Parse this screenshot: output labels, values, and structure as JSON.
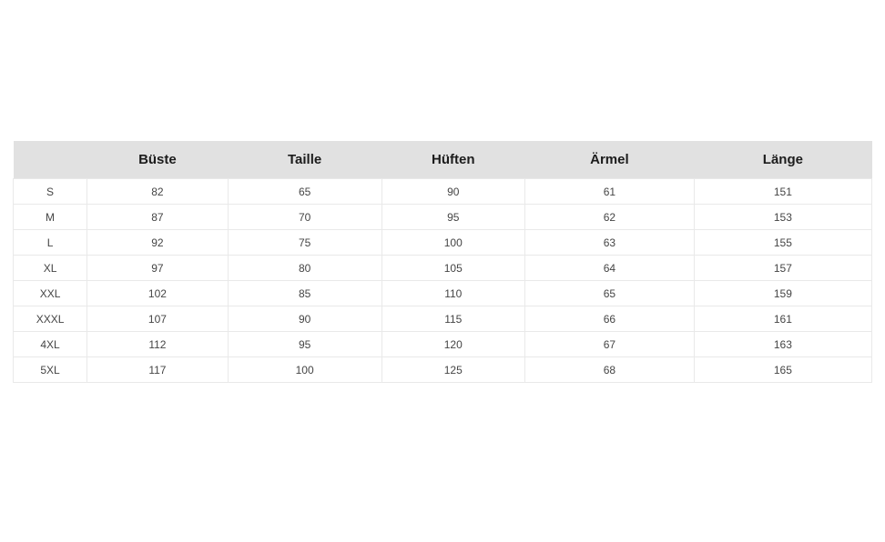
{
  "chart_data": {
    "type": "table",
    "title": "",
    "columns": [
      "",
      "Büste",
      "Taille",
      "Hüften",
      "Ärmel",
      "Länge"
    ],
    "rows": [
      [
        "S",
        82,
        65,
        90,
        61,
        151
      ],
      [
        "M",
        87,
        70,
        95,
        62,
        153
      ],
      [
        "L",
        92,
        75,
        100,
        63,
        155
      ],
      [
        "XL",
        97,
        80,
        105,
        64,
        157
      ],
      [
        "XXL",
        102,
        85,
        110,
        65,
        159
      ],
      [
        "XXXL",
        107,
        90,
        115,
        66,
        161
      ],
      [
        "4XL",
        112,
        95,
        120,
        67,
        163
      ],
      [
        "5XL",
        117,
        100,
        125,
        68,
        165
      ]
    ],
    "layout": {
      "legend": "none",
      "grid": "light-borders"
    },
    "colors": {
      "header_background": "#e1e1e1",
      "header_text": "#1c1c1c",
      "cell_text": "#454545",
      "cell_border": "#e9e9e9",
      "page_background": "#ffffff"
    }
  }
}
